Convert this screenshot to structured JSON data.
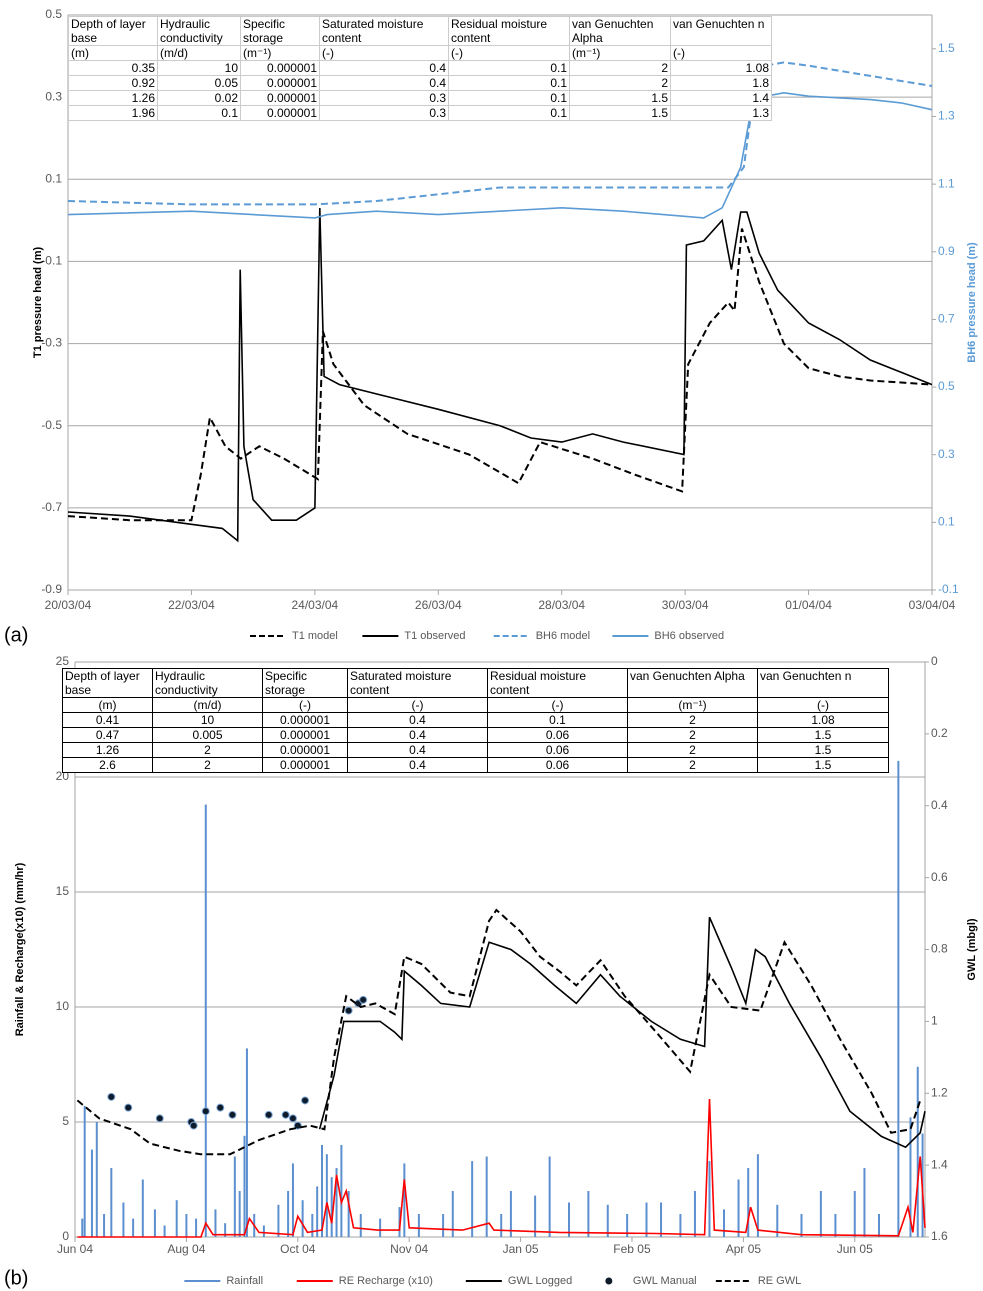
{
  "chart_data": [
    {
      "type": "line",
      "panel_label": "(a)",
      "y_label": "T1 pressure head (m)",
      "y2_label": "BH6 pressure head (m)",
      "xlim": [
        0,
        14
      ],
      "xticks": [
        {
          "value": 0,
          "label": "20/03/04"
        },
        {
          "value": 2,
          "label": "22/03/04"
        },
        {
          "value": 4,
          "label": "24/03/04"
        },
        {
          "value": 6,
          "label": "26/03/04"
        },
        {
          "value": 8,
          "label": "28/03/04"
        },
        {
          "value": 10,
          "label": "30/03/04"
        },
        {
          "value": 12,
          "label": "01/04/04"
        },
        {
          "value": 14,
          "label": "03/04/04"
        }
      ],
      "ylim": [
        -0.9,
        0.5
      ],
      "yticks": [
        -0.9,
        -0.7,
        -0.5,
        -0.3,
        -0.1,
        0.1,
        0.3,
        0.5
      ],
      "y2lim": [
        -0.1,
        1.6
      ],
      "y2ticks": [
        -0.1,
        0.1,
        0.3,
        0.5,
        0.7,
        0.9,
        1.1,
        1.3,
        1.5
      ],
      "grid": true,
      "series": [
        {
          "name": "T1 model",
          "type": "line",
          "style": "dashed",
          "color": "#000000",
          "x": [
            0,
            1,
            2,
            2.15,
            2.3,
            2.55,
            2.8,
            3.1,
            3.5,
            4.05,
            4.13,
            4.3,
            4.8,
            5.5,
            6.5,
            7.3,
            7.65,
            8.5,
            9.2,
            9.95,
            10.05,
            10.4,
            10.7,
            10.8,
            10.92,
            11.2,
            11.6,
            12,
            12.5,
            13,
            14
          ],
          "values": [
            -0.72,
            -0.73,
            -0.73,
            -0.62,
            -0.48,
            -0.55,
            -0.58,
            -0.55,
            -0.58,
            -0.63,
            -0.27,
            -0.35,
            -0.45,
            -0.52,
            -0.57,
            -0.64,
            -0.54,
            -0.58,
            -0.62,
            -0.66,
            -0.35,
            -0.25,
            -0.2,
            -0.22,
            -0.02,
            -0.15,
            -0.3,
            -0.36,
            -0.38,
            -0.39,
            -0.4
          ]
        },
        {
          "name": "T1 observed",
          "type": "line",
          "style": "solid",
          "color": "#000000",
          "x": [
            0,
            1,
            2,
            2.5,
            2.75,
            2.79,
            2.85,
            3,
            3.3,
            3.7,
            4,
            4.08,
            4.15,
            4.4,
            5.2,
            6,
            7,
            7.5,
            8,
            8.5,
            9,
            9.98,
            10.02,
            10.3,
            10.6,
            10.75,
            10.9,
            11,
            11.2,
            11.5,
            12,
            12.5,
            13,
            13.5,
            14
          ],
          "values": [
            -0.71,
            -0.72,
            -0.74,
            -0.75,
            -0.78,
            -0.12,
            -0.55,
            -0.68,
            -0.73,
            -0.73,
            -0.7,
            0.03,
            -0.38,
            -0.4,
            -0.43,
            -0.46,
            -0.5,
            -0.53,
            -0.54,
            -0.52,
            -0.54,
            -0.57,
            -0.06,
            -0.05,
            0,
            -0.12,
            0.02,
            0.02,
            -0.08,
            -0.17,
            -0.25,
            -0.29,
            -0.34,
            -0.37,
            -0.4
          ]
        },
        {
          "name": "BH6 model",
          "type": "line",
          "style": "dashed",
          "color": "#5b9bd5",
          "axis": "y2",
          "x": [
            0,
            2,
            3,
            4,
            5,
            6,
            7,
            8,
            10,
            10.7,
            10.95,
            11.1,
            11.3,
            11.6,
            12,
            13,
            14
          ],
          "values": [
            1.05,
            1.04,
            1.04,
            1.04,
            1.05,
            1.07,
            1.09,
            1.09,
            1.09,
            1.09,
            1.15,
            1.35,
            1.45,
            1.46,
            1.45,
            1.42,
            1.39
          ]
        },
        {
          "name": "BH6 observed",
          "type": "line",
          "style": "solid",
          "color": "#5b9bd5",
          "axis": "y2",
          "x": [
            0,
            2,
            3,
            4,
            4.2,
            5,
            6,
            7,
            8,
            9,
            10.3,
            10.6,
            10.9,
            11.05,
            11.3,
            11.6,
            12,
            13,
            13.5,
            14
          ],
          "values": [
            1.01,
            1.02,
            1.01,
            1,
            1.01,
            1.02,
            1.01,
            1.02,
            1.03,
            1.02,
            1,
            1.03,
            1.15,
            1.3,
            1.36,
            1.37,
            1.36,
            1.35,
            1.34,
            1.32
          ]
        }
      ],
      "table": {
        "header": [
          "Depth of layer base",
          "Hydraulic conductivity",
          "Specific storage",
          "Saturated moisture content",
          "Residual moisture content",
          "van Genuchten Alpha",
          "van Genuchten n"
        ],
        "units": [
          "(m)",
          "(m/d)",
          "(m⁻¹)",
          "(-)",
          "(-)",
          "(m⁻¹)",
          "(-)"
        ],
        "rows": [
          [
            "0.35",
            "10",
            "0.000001",
            "0.4",
            "0.1",
            "2",
            "1.08"
          ],
          [
            "0.92",
            "0.05",
            "0.000001",
            "0.4",
            "0.1",
            "2",
            "1.8"
          ],
          [
            "1.26",
            "0.02",
            "0.000001",
            "0.3",
            "0.1",
            "1.5",
            "1.4"
          ],
          [
            "1.96",
            "0.1",
            "0.000001",
            "0.3",
            "0.1",
            "1.5",
            "1.3"
          ]
        ]
      }
    },
    {
      "type": "combo",
      "panel_label": "(b)",
      "y_label": "Rainfall & Recharge(x10) (mm/hr)",
      "y2_label": "GWL (mbgl)",
      "xlim": [
        0,
        351
      ],
      "xticks": [
        {
          "value": 0,
          "label": "Jun 04"
        },
        {
          "value": 46,
          "label": "Aug 04"
        },
        {
          "value": 92,
          "label": "Oct 04"
        },
        {
          "value": 138,
          "label": "Nov 04"
        },
        {
          "value": 184,
          "label": "Jan 05"
        },
        {
          "value": 230,
          "label": "Feb 05"
        },
        {
          "value": 276,
          "label": "Apr 05"
        },
        {
          "value": 322,
          "label": "Jun 05"
        }
      ],
      "ylim": [
        0,
        25
      ],
      "yticks": [
        0,
        5,
        10,
        15,
        20,
        25
      ],
      "y2lim": [
        1.6,
        0
      ],
      "y2ticks": [
        0,
        0.2,
        0.4,
        0.6,
        0.8,
        1,
        1.2,
        1.4,
        1.6
      ],
      "grid": true,
      "series": [
        {
          "name": "Rainfall",
          "type": "bar",
          "color": "#5b8fcf",
          "x": [
            3,
            4,
            7,
            9,
            12,
            15,
            20,
            24,
            28,
            33,
            37,
            42,
            46,
            50,
            54,
            58,
            62,
            66,
            68,
            70,
            71,
            74,
            78,
            84,
            88,
            90,
            94,
            98,
            100,
            102,
            104,
            106,
            108,
            110,
            113,
            118,
            126,
            134,
            136,
            142,
            152,
            156,
            164,
            170,
            176,
            180,
            190,
            196,
            204,
            212,
            220,
            228,
            236,
            242,
            250,
            256,
            262,
            268,
            274,
            278,
            282,
            290,
            300,
            308,
            314,
            322,
            326,
            332,
            340,
            345,
            348,
            350
          ],
          "values": [
            0.8,
            5.7,
            3.8,
            5,
            1,
            3,
            1.5,
            0.8,
            2.5,
            1.2,
            0.5,
            1.6,
            1,
            0.8,
            18.8,
            1.2,
            0.6,
            3.5,
            2,
            4.4,
            8.2,
            1,
            0.5,
            1.4,
            2,
            3.2,
            1.6,
            1,
            2.2,
            4,
            3.6,
            2.6,
            3,
            4,
            2,
            1,
            0.8,
            1.3,
            3.2,
            1,
            1,
            2,
            3.3,
            3.5,
            1,
            2,
            1.8,
            3.5,
            1.5,
            2,
            1.4,
            1,
            1.5,
            1.5,
            1,
            2,
            3.3,
            1.2,
            2.5,
            3,
            3.6,
            1.4,
            1,
            2,
            1,
            2,
            3,
            1,
            20.7,
            5.2,
            7.4,
            4.5
          ]
        },
        {
          "name": "RE Recharge (x10)",
          "type": "line",
          "style": "solid",
          "color": "#ff0000",
          "x": [
            1,
            52,
            54,
            57,
            70,
            72,
            76,
            90,
            92,
            96,
            102,
            104,
            106,
            108,
            110,
            112,
            115,
            125,
            134,
            136,
            138,
            160,
            171,
            173,
            200,
            240,
            260,
            262,
            264,
            277,
            279,
            282,
            300,
            340,
            344,
            346,
            349,
            351
          ],
          "values": [
            0,
            0,
            0.6,
            0.1,
            0.1,
            0.8,
            0.2,
            0.1,
            0.9,
            0.2,
            0.3,
            1.5,
            0.6,
            2.7,
            1.5,
            2,
            0.4,
            0.3,
            0.3,
            2.5,
            0.4,
            0.3,
            0.6,
            0.3,
            0.2,
            0.15,
            0.1,
            6,
            0.3,
            0.2,
            1.3,
            0.3,
            0.1,
            0.05,
            1.3,
            0.2,
            3.5,
            0.4
          ]
        },
        {
          "name": "GWL Logged",
          "type": "line",
          "style": "solid",
          "color": "#000000",
          "axis": "y2",
          "x": [
            101,
            107,
            111,
            118,
            126,
            132,
            135,
            136,
            143,
            151,
            163,
            171,
            180,
            188,
            198,
            207,
            217,
            225,
            238,
            250,
            260,
            262,
            271,
            277,
            281,
            285,
            295,
            308,
            320,
            333,
            343,
            349,
            351
          ],
          "values": [
            1.3,
            1.15,
            1,
            1,
            1,
            1.03,
            1.05,
            0.86,
            0.9,
            0.95,
            0.96,
            0.78,
            0.8,
            0.84,
            0.9,
            0.95,
            0.87,
            0.93,
            1,
            1.05,
            1.07,
            0.71,
            0.85,
            0.95,
            0.8,
            0.82,
            0.95,
            1.1,
            1.25,
            1.32,
            1.35,
            1.31,
            1.25
          ]
        },
        {
          "name": "GWL Manual",
          "type": "scatter",
          "color": "#0d1b2a",
          "axis": "y2",
          "x": [
            15,
            22,
            35,
            48,
            49,
            54,
            60,
            65,
            80,
            87,
            90,
            92,
            95,
            113,
            117,
            119
          ],
          "values": [
            1.21,
            1.24,
            1.27,
            1.28,
            1.29,
            1.25,
            1.24,
            1.26,
            1.26,
            1.26,
            1.27,
            1.29,
            1.22,
            0.97,
            0.95,
            0.94
          ]
        },
        {
          "name": "RE GWL",
          "type": "line",
          "style": "dashed",
          "color": "#000000",
          "axis": "y2",
          "x": [
            1,
            10,
            23,
            31,
            43,
            52,
            64,
            76,
            89,
            97,
            103,
            107,
            112,
            118,
            124,
            132,
            136,
            143,
            155,
            163,
            171,
            174,
            184,
            192,
            200,
            207,
            217,
            227,
            240,
            254,
            262,
            271,
            283,
            293,
            304,
            316,
            329,
            337,
            345,
            349
          ],
          "values": [
            1.22,
            1.27,
            1.3,
            1.34,
            1.36,
            1.37,
            1.37,
            1.33,
            1.3,
            1.29,
            1.3,
            1.1,
            0.93,
            0.96,
            0.95,
            0.98,
            0.82,
            0.84,
            0.92,
            0.93,
            0.72,
            0.69,
            0.75,
            0.82,
            0.86,
            0.9,
            0.83,
            0.93,
            1.03,
            1.14,
            0.87,
            0.96,
            0.97,
            0.78,
            0.9,
            1.05,
            1.2,
            1.31,
            1.3,
            1.22
          ]
        }
      ],
      "table": {
        "header": [
          "Depth of layer base",
          "Hydraulic conductivity",
          "Specific storage",
          "Saturated moisture content",
          "Residual moisture content",
          "van Genuchten Alpha",
          "van Genuchten n"
        ],
        "units": [
          "(m)",
          "(m/d)",
          "(-)",
          "(-)",
          "(-)",
          "(m⁻¹)",
          "(-)"
        ],
        "rows": [
          [
            "0.41",
            "10",
            "0.000001",
            "0.4",
            "0.1",
            "2",
            "1.08"
          ],
          [
            "0.47",
            "0.005",
            "0.000001",
            "0.4",
            "0.06",
            "2",
            "1.5"
          ],
          [
            "1.26",
            "2",
            "0.000001",
            "0.4",
            "0.06",
            "2",
            "1.5"
          ],
          [
            "2.6",
            "2",
            "0.000001",
            "0.4",
            "0.06",
            "2",
            "1.5"
          ]
        ]
      }
    }
  ]
}
